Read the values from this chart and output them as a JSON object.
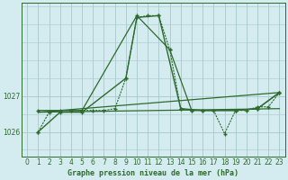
{
  "title": "Graphe pression niveau de la mer (hPa)",
  "bg_color": "#d4ecf0",
  "line_color": "#2d6a2d",
  "grid_color": "#a8c8cc",
  "xlim": [
    -0.5,
    23.5
  ],
  "ylim": [
    1025.3,
    1029.6
  ],
  "yticks": [
    1026,
    1027
  ],
  "xticks": [
    0,
    1,
    2,
    3,
    4,
    5,
    6,
    7,
    8,
    9,
    10,
    11,
    12,
    13,
    14,
    15,
    16,
    17,
    18,
    19,
    20,
    21,
    22,
    23
  ],
  "series1_x": [
    1,
    2,
    3,
    4,
    5,
    6,
    7,
    8,
    9,
    10,
    11,
    12,
    13,
    14,
    15,
    16,
    17,
    18,
    19,
    20,
    21,
    22,
    23
  ],
  "series1_y": [
    1026.0,
    1026.55,
    1026.6,
    1026.6,
    1026.6,
    1026.6,
    1026.6,
    1026.65,
    1027.5,
    1029.2,
    1029.25,
    1029.25,
    1028.3,
    1026.65,
    1026.6,
    1026.6,
    1026.6,
    1025.95,
    1026.6,
    1026.6,
    1026.7,
    1026.7,
    1027.1
  ],
  "series2_x": [
    1,
    3,
    5,
    9,
    10,
    12,
    14,
    16,
    19,
    21,
    23
  ],
  "series2_y": [
    1026.0,
    1026.55,
    1026.55,
    1027.5,
    1029.2,
    1029.25,
    1026.65,
    1026.6,
    1026.6,
    1026.65,
    1027.1
  ],
  "series3_x": [
    1,
    5,
    10,
    13,
    15,
    19,
    21,
    23
  ],
  "series3_y": [
    1026.6,
    1026.6,
    1029.25,
    1028.3,
    1026.6,
    1026.6,
    1026.65,
    1027.1
  ],
  "trend1_x": [
    1,
    23
  ],
  "trend1_y": [
    1026.55,
    1026.65
  ],
  "trend2_x": [
    1,
    23
  ],
  "trend2_y": [
    1026.55,
    1027.1
  ]
}
